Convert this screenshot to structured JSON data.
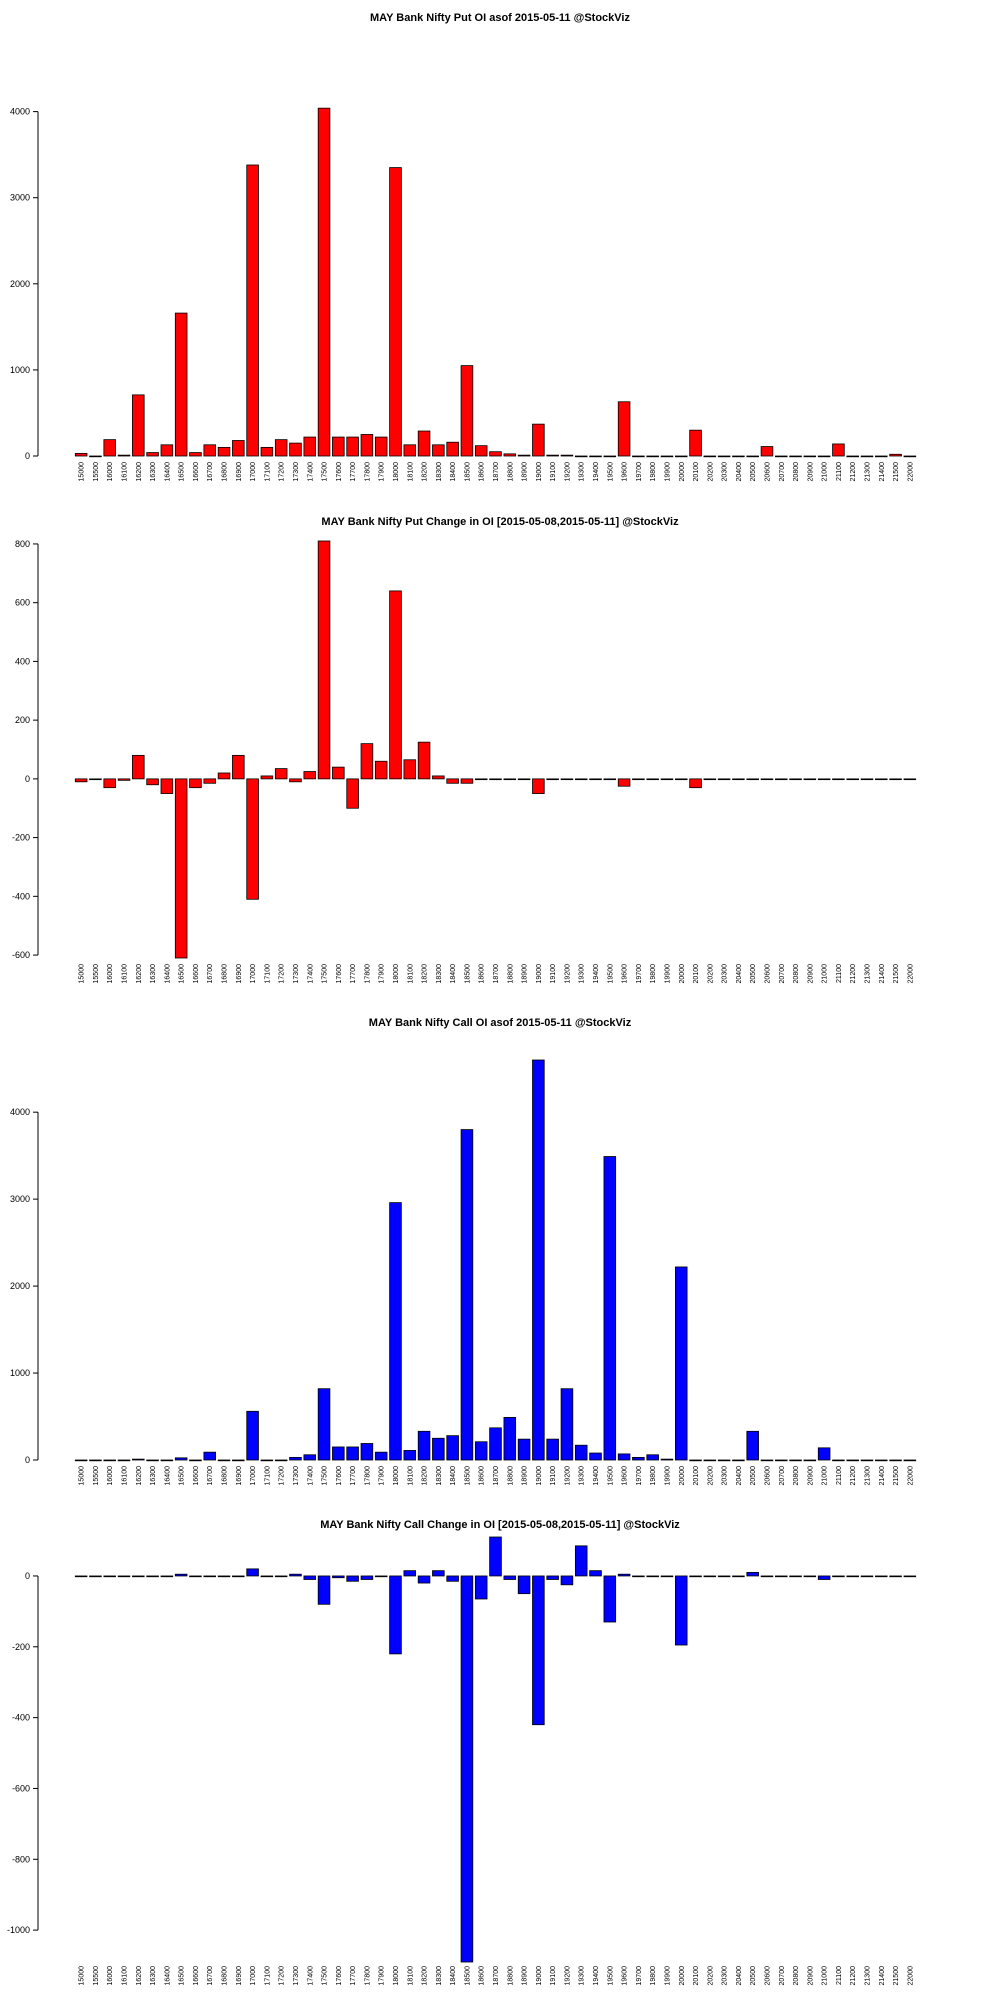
{
  "strikes": [
    "15000",
    "15500",
    "16000",
    "16100",
    "16200",
    "16300",
    "16400",
    "16500",
    "16600",
    "16700",
    "16800",
    "16900",
    "17000",
    "17100",
    "17200",
    "17300",
    "17400",
    "17500",
    "17600",
    "17700",
    "17800",
    "17900",
    "18000",
    "18100",
    "18200",
    "18300",
    "18400",
    "18500",
    "18600",
    "18700",
    "18800",
    "18900",
    "19000",
    "19100",
    "19200",
    "19300",
    "19400",
    "19500",
    "19600",
    "19700",
    "19800",
    "19900",
    "20000",
    "20100",
    "20200",
    "20300",
    "20400",
    "20500",
    "20600",
    "20700",
    "20800",
    "20900",
    "21000",
    "21100",
    "21200",
    "21300",
    "21400",
    "21500",
    "22000"
  ],
  "chart_data": [
    {
      "type": "bar",
      "title": "MAY Bank Nifty Put OI asof 2015-05-11 @StockViz",
      "color": "#ff0000",
      "ylim": [
        0,
        4100
      ],
      "yticks": [
        0,
        1000,
        2000,
        3000,
        4000
      ],
      "values": [
        30,
        0,
        190,
        10,
        710,
        40,
        130,
        1660,
        40,
        130,
        100,
        180,
        3380,
        100,
        190,
        150,
        220,
        4040,
        220,
        220,
        250,
        220,
        3350,
        130,
        290,
        130,
        160,
        1050,
        120,
        50,
        25,
        10,
        370,
        10,
        10,
        0,
        0,
        0,
        630,
        0,
        0,
        0,
        0,
        300,
        0,
        0,
        0,
        0,
        110,
        0,
        0,
        0,
        0,
        140,
        0,
        0,
        0,
        20,
        0
      ]
    },
    {
      "type": "bar",
      "title": "MAY Bank Nifty Put Change in OI [2015-05-08,2015-05-11] @StockViz",
      "color": "#ff0000",
      "ylim": [
        -610,
        810
      ],
      "yticks": [
        -600,
        -400,
        -200,
        0,
        200,
        400,
        600,
        800
      ],
      "values": [
        -10,
        0,
        -30,
        -5,
        80,
        -20,
        -50,
        -610,
        -30,
        -15,
        20,
        80,
        -410,
        10,
        35,
        -10,
        25,
        810,
        40,
        -100,
        120,
        60,
        640,
        65,
        125,
        10,
        -15,
        -15,
        0,
        0,
        0,
        0,
        -50,
        0,
        0,
        0,
        0,
        0,
        -25,
        0,
        0,
        0,
        0,
        -30,
        0,
        0,
        0,
        0,
        0,
        0,
        0,
        0,
        0,
        0,
        0,
        0,
        0,
        0,
        0
      ]
    },
    {
      "type": "bar",
      "title": "MAY Bank Nifty Call OI asof 2015-05-11 @StockViz",
      "color": "#0000ff",
      "ylim": [
        0,
        4600
      ],
      "yticks": [
        0,
        1000,
        2000,
        3000,
        4000
      ],
      "values": [
        0,
        0,
        0,
        0,
        10,
        0,
        0,
        25,
        0,
        90,
        0,
        0,
        560,
        0,
        0,
        30,
        60,
        820,
        150,
        150,
        190,
        90,
        2960,
        110,
        330,
        250,
        280,
        3800,
        210,
        370,
        490,
        240,
        4600,
        240,
        820,
        170,
        80,
        3490,
        70,
        30,
        60,
        10,
        2220,
        0,
        0,
        0,
        0,
        330,
        0,
        0,
        0,
        0,
        140,
        0,
        0,
        0,
        0,
        0,
        0
      ]
    },
    {
      "type": "bar",
      "title": "MAY Bank Nifty Call Change in OI [2015-05-08,2015-05-11] @StockViz",
      "color": "#0000ff",
      "ylim": [
        -1090,
        110
      ],
      "yticks": [
        -1000,
        -800,
        -600,
        -400,
        -200,
        0
      ],
      "values": [
        0,
        0,
        0,
        0,
        0,
        0,
        0,
        5,
        0,
        0,
        0,
        0,
        20,
        0,
        0,
        5,
        -10,
        -80,
        -5,
        -15,
        -10,
        0,
        -220,
        15,
        -20,
        15,
        -15,
        -1090,
        -65,
        110,
        -10,
        -50,
        -420,
        -10,
        -25,
        85,
        15,
        -130,
        5,
        0,
        0,
        0,
        -195,
        0,
        0,
        0,
        0,
        10,
        0,
        0,
        0,
        0,
        -10,
        0,
        0,
        0,
        0,
        0,
        0
      ]
    }
  ]
}
